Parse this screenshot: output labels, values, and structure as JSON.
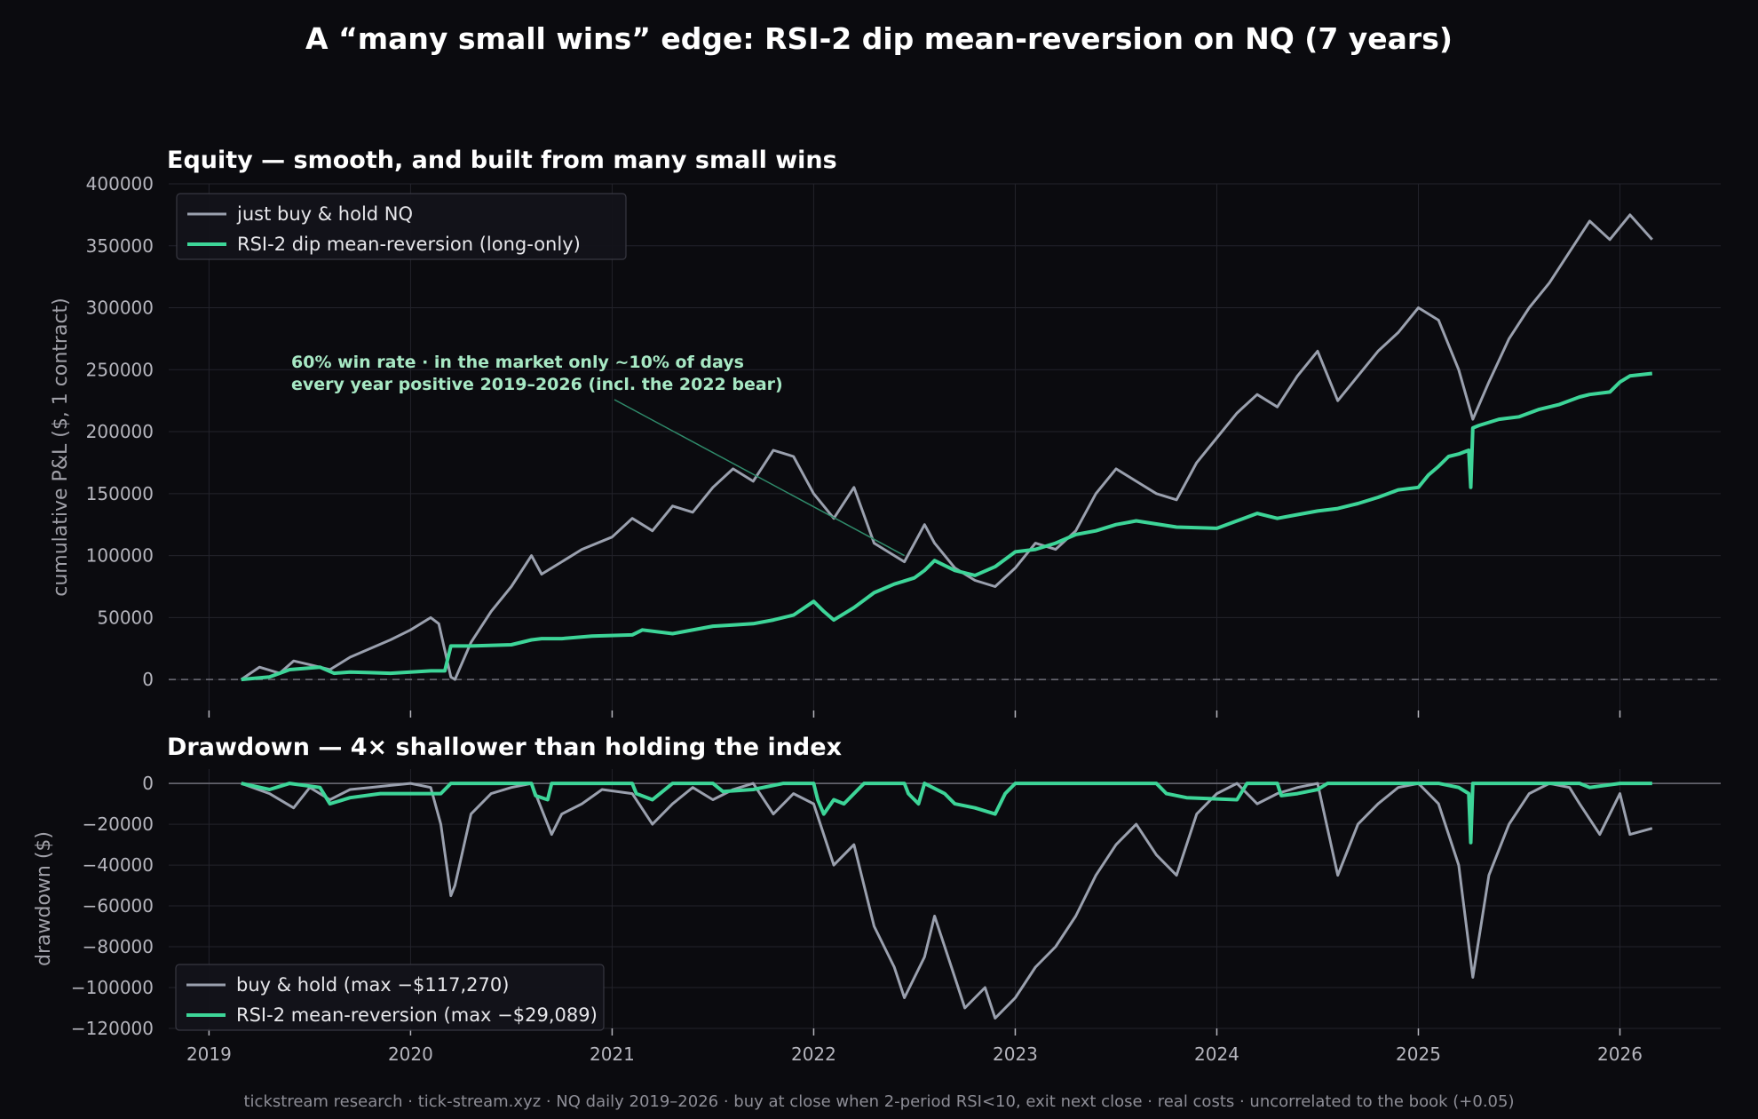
{
  "figure": {
    "title": "A “many small wins” edge: RSI-2 dip mean-reversion on NQ (7 years)",
    "footer": "tickstream research · tick-stream.xyz · NQ daily 2019–2026 · buy at close when 2-period RSI<10, exit next close · real costs · uncorrelated to the book (+0.05)"
  },
  "colors": {
    "background": "#0b0b0f",
    "buy_hold": "#9aa0ae",
    "strategy": "#3dd598",
    "annotation": "#a7e8c4",
    "grid": "#23232b",
    "text": "#e6e6ea",
    "tick": "#b5b5bd"
  },
  "chart_data": [
    {
      "type": "line",
      "title": "Equity — smooth, and built from many small wins",
      "xlabel": "",
      "ylabel": "cumulative P&L ($, 1 contract)",
      "xlim": [
        2018.8,
        2026.5
      ],
      "ylim": [
        -25000,
        400000
      ],
      "x_ticks": [
        2019,
        2020,
        2021,
        2022,
        2023,
        2024,
        2025,
        2026
      ],
      "y_ticks": [
        0,
        50000,
        100000,
        150000,
        200000,
        250000,
        300000,
        350000,
        400000
      ],
      "y_tick_labels": [
        "0",
        "50000",
        "100000",
        "150000",
        "200000",
        "250000",
        "300000",
        "350000",
        "400000"
      ],
      "grid": true,
      "legend": "top-left",
      "zero_line": "dashed",
      "annotation": {
        "lines": [
          "60% win rate · in the market only ~10% of days",
          "every year positive 2019–2026 (incl. the 2022 bear)"
        ],
        "arrow_to": [
          2022.45,
          100000
        ]
      },
      "series": [
        {
          "name": "just buy & hold NQ",
          "x": [
            2019.16,
            2019.25,
            2019.35,
            2019.42,
            2019.5,
            2019.6,
            2019.7,
            2019.8,
            2019.9,
            2020.0,
            2020.1,
            2020.14,
            2020.2,
            2020.22,
            2020.3,
            2020.4,
            2020.5,
            2020.6,
            2020.65,
            2020.75,
            2020.85,
            2021.0,
            2021.1,
            2021.2,
            2021.3,
            2021.4,
            2021.5,
            2021.6,
            2021.7,
            2021.8,
            2021.9,
            2022.0,
            2022.1,
            2022.2,
            2022.3,
            2022.4,
            2022.45,
            2022.55,
            2022.6,
            2022.7,
            2022.8,
            2022.9,
            2023.0,
            2023.1,
            2023.2,
            2023.3,
            2023.4,
            2023.5,
            2023.6,
            2023.7,
            2023.8,
            2023.9,
            2024.0,
            2024.1,
            2024.2,
            2024.3,
            2024.4,
            2024.5,
            2024.6,
            2024.7,
            2024.8,
            2024.9,
            2025.0,
            2025.1,
            2025.2,
            2025.27,
            2025.35,
            2025.45,
            2025.55,
            2025.65,
            2025.75,
            2025.85,
            2025.95,
            2026.05,
            2026.16
          ],
          "y": [
            0,
            10000,
            5000,
            15000,
            12000,
            8000,
            18000,
            25000,
            32000,
            40000,
            50000,
            45000,
            2000,
            0,
            30000,
            55000,
            75000,
            100000,
            85000,
            95000,
            105000,
            115000,
            130000,
            120000,
            140000,
            135000,
            155000,
            170000,
            160000,
            185000,
            180000,
            150000,
            130000,
            155000,
            110000,
            100000,
            95000,
            125000,
            110000,
            90000,
            80000,
            75000,
            90000,
            110000,
            105000,
            120000,
            150000,
            170000,
            160000,
            150000,
            145000,
            175000,
            195000,
            215000,
            230000,
            220000,
            245000,
            265000,
            225000,
            245000,
            265000,
            280000,
            300000,
            290000,
            250000,
            210000,
            240000,
            275000,
            300000,
            320000,
            345000,
            370000,
            355000,
            375000,
            355000
          ]
        },
        {
          "name": "RSI-2 dip mean-reversion (long-only)",
          "x": [
            2019.16,
            2019.3,
            2019.4,
            2019.55,
            2019.62,
            2019.7,
            2019.8,
            2019.9,
            2020.0,
            2020.1,
            2020.17,
            2020.2,
            2020.3,
            2020.5,
            2020.6,
            2020.65,
            2020.75,
            2020.9,
            2021.1,
            2021.15,
            2021.3,
            2021.5,
            2021.6,
            2021.7,
            2021.8,
            2021.9,
            2022.0,
            2022.05,
            2022.1,
            2022.2,
            2022.3,
            2022.4,
            2022.5,
            2022.55,
            2022.6,
            2022.7,
            2022.8,
            2022.9,
            2023.0,
            2023.1,
            2023.2,
            2023.3,
            2023.4,
            2023.5,
            2023.6,
            2023.8,
            2024.0,
            2024.1,
            2024.2,
            2024.3,
            2024.4,
            2024.5,
            2024.6,
            2024.7,
            2024.8,
            2024.9,
            2025.0,
            2025.05,
            2025.1,
            2025.15,
            2025.2,
            2025.25,
            2025.26,
            2025.27,
            2025.3,
            2025.4,
            2025.5,
            2025.6,
            2025.7,
            2025.8,
            2025.85,
            2025.95,
            2026.0,
            2026.05,
            2026.16
          ],
          "y": [
            0,
            2000,
            8000,
            10000,
            5000,
            6000,
            5500,
            5000,
            6000,
            7000,
            7000,
            27000,
            27000,
            28000,
            32000,
            33000,
            33000,
            35000,
            36000,
            40000,
            37000,
            43000,
            44000,
            45000,
            48000,
            52000,
            63000,
            55000,
            48000,
            58000,
            70000,
            77000,
            82000,
            88000,
            96000,
            88000,
            84000,
            91000,
            103000,
            105000,
            110000,
            117000,
            120000,
            125000,
            128000,
            123000,
            122000,
            128000,
            134000,
            130000,
            133000,
            136000,
            138000,
            142000,
            147000,
            153000,
            155000,
            165000,
            172000,
            180000,
            182000,
            185000,
            155000,
            203000,
            205000,
            210000,
            212000,
            218000,
            222000,
            228000,
            230000,
            232000,
            240000,
            245000,
            247000
          ]
        }
      ]
    },
    {
      "type": "line",
      "title": "Drawdown — 4× shallower than holding the index",
      "xlabel": "",
      "ylabel": "drawdown ($)",
      "xlim": [
        2018.8,
        2026.5
      ],
      "ylim": [
        -120000,
        7000
      ],
      "x_ticks": [
        2019,
        2020,
        2021,
        2022,
        2023,
        2024,
        2025,
        2026
      ],
      "x_tick_labels": [
        "2019",
        "2020",
        "2021",
        "2022",
        "2023",
        "2024",
        "2025",
        "2026"
      ],
      "y_ticks": [
        0,
        -20000,
        -40000,
        -60000,
        -80000,
        -100000,
        -120000
      ],
      "y_tick_labels": [
        "0",
        "−20000",
        "−40000",
        "−60000",
        "−80000",
        "−100000",
        "−120000"
      ],
      "grid": true,
      "legend": "bottom-left",
      "series": [
        {
          "name": "buy & hold (max −$117,270)",
          "x": [
            2019.16,
            2019.3,
            2019.42,
            2019.5,
            2019.6,
            2019.7,
            2019.8,
            2019.9,
            2020.0,
            2020.1,
            2020.15,
            2020.2,
            2020.22,
            2020.3,
            2020.4,
            2020.5,
            2020.6,
            2020.7,
            2020.75,
            2020.85,
            2020.95,
            2021.1,
            2021.2,
            2021.3,
            2021.4,
            2021.5,
            2021.6,
            2021.7,
            2021.8,
            2021.9,
            2022.0,
            2022.1,
            2022.2,
            2022.3,
            2022.4,
            2022.45,
            2022.55,
            2022.6,
            2022.7,
            2022.75,
            2022.85,
            2022.9,
            2023.0,
            2023.1,
            2023.2,
            2023.3,
            2023.4,
            2023.5,
            2023.6,
            2023.7,
            2023.8,
            2023.9,
            2024.0,
            2024.1,
            2024.2,
            2024.3,
            2024.4,
            2024.5,
            2024.6,
            2024.7,
            2024.8,
            2024.9,
            2025.0,
            2025.1,
            2025.2,
            2025.27,
            2025.35,
            2025.45,
            2025.55,
            2025.65,
            2025.75,
            2025.8,
            2025.9,
            2026.0,
            2026.05,
            2026.16
          ],
          "y": [
            0,
            -5000,
            -12000,
            -2000,
            -8000,
            -3000,
            -2000,
            -1000,
            0,
            -2000,
            -20000,
            -55000,
            -50000,
            -15000,
            -5000,
            -2000,
            0,
            -25000,
            -15000,
            -10000,
            -3000,
            -5000,
            -20000,
            -10000,
            -2000,
            -8000,
            -3000,
            0,
            -15000,
            -5000,
            -10000,
            -40000,
            -30000,
            -70000,
            -90000,
            -105000,
            -85000,
            -65000,
            -95000,
            -110000,
            -100000,
            -115000,
            -105000,
            -90000,
            -80000,
            -65000,
            -45000,
            -30000,
            -20000,
            -35000,
            -45000,
            -15000,
            -5000,
            0,
            -10000,
            -5000,
            -2000,
            0,
            -45000,
            -20000,
            -10000,
            -2000,
            0,
            -10000,
            -40000,
            -95000,
            -45000,
            -20000,
            -5000,
            0,
            -2000,
            -10000,
            -25000,
            -5000,
            -25000,
            -22000
          ]
        },
        {
          "name": "RSI-2 mean-reversion (max −$29,089)",
          "x": [
            2019.16,
            2019.3,
            2019.4,
            2019.55,
            2019.6,
            2019.7,
            2019.85,
            2020.0,
            2020.15,
            2020.2,
            2020.6,
            2020.62,
            2020.68,
            2020.7,
            2021.1,
            2021.12,
            2021.2,
            2021.3,
            2021.5,
            2021.55,
            2021.7,
            2021.85,
            2022.0,
            2022.02,
            2022.05,
            2022.1,
            2022.15,
            2022.2,
            2022.25,
            2022.45,
            2022.47,
            2022.52,
            2022.55,
            2022.65,
            2022.7,
            2022.8,
            2022.9,
            2022.95,
            2023.0,
            2023.7,
            2023.75,
            2023.85,
            2024.1,
            2024.15,
            2024.3,
            2024.32,
            2024.4,
            2024.5,
            2024.55,
            2025.1,
            2025.2,
            2025.25,
            2025.26,
            2025.27,
            2025.3,
            2025.6,
            2025.8,
            2025.85,
            2026.0,
            2026.16
          ],
          "y": [
            0,
            -3000,
            0,
            -2000,
            -10000,
            -7000,
            -5000,
            -5000,
            -5000,
            0,
            0,
            -6000,
            -8000,
            0,
            0,
            -5000,
            -8000,
            0,
            0,
            -4000,
            -3000,
            0,
            0,
            -8000,
            -15000,
            -8000,
            -10000,
            -5000,
            0,
            0,
            -5000,
            -10000,
            0,
            -5000,
            -10000,
            -12000,
            -15000,
            -5000,
            0,
            0,
            -5000,
            -7000,
            -8000,
            0,
            0,
            -6000,
            -5000,
            -3000,
            0,
            0,
            -2000,
            -5000,
            -29000,
            0,
            0,
            0,
            0,
            -2000,
            0,
            0
          ]
        }
      ]
    }
  ]
}
